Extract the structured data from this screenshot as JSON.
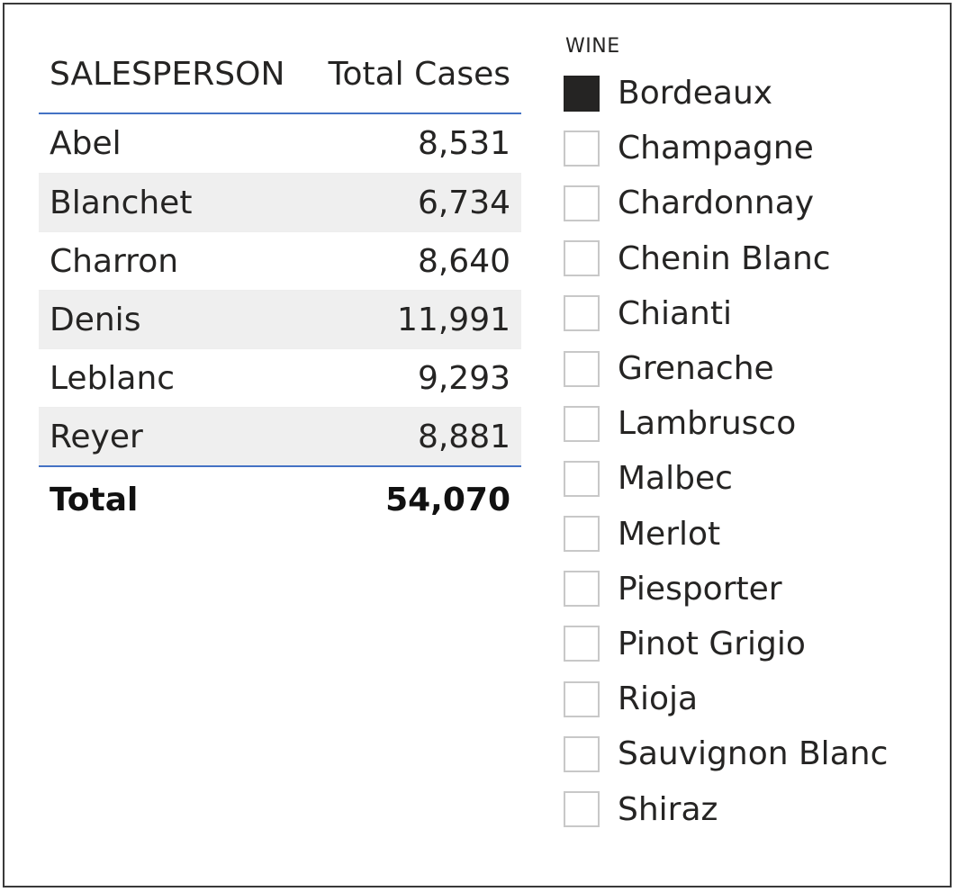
{
  "table": {
    "columns": [
      "SALESPERSON",
      "Total Cases"
    ],
    "rows": [
      {
        "name": "Abel",
        "cases": "8,531"
      },
      {
        "name": "Blanchet",
        "cases": "6,734"
      },
      {
        "name": "Charron",
        "cases": "8,640"
      },
      {
        "name": "Denis",
        "cases": "11,991"
      },
      {
        "name": "Leblanc",
        "cases": "9,293"
      },
      {
        "name": "Reyer",
        "cases": "8,881"
      }
    ],
    "total": {
      "label": "Total",
      "value": "54,070"
    }
  },
  "slicer": {
    "title": "WINE",
    "items": [
      {
        "label": "Bordeaux",
        "checked": true
      },
      {
        "label": "Champagne",
        "checked": false
      },
      {
        "label": "Chardonnay",
        "checked": false
      },
      {
        "label": "Chenin Blanc",
        "checked": false
      },
      {
        "label": "Chianti",
        "checked": false
      },
      {
        "label": "Grenache",
        "checked": false
      },
      {
        "label": "Lambrusco",
        "checked": false
      },
      {
        "label": "Malbec",
        "checked": false
      },
      {
        "label": "Merlot",
        "checked": false
      },
      {
        "label": "Piesporter",
        "checked": false
      },
      {
        "label": "Pinot Grigio",
        "checked": false
      },
      {
        "label": "Rioja",
        "checked": false
      },
      {
        "label": "Sauvignon Blanc",
        "checked": false
      },
      {
        "label": "Shiraz",
        "checked": false
      }
    ]
  },
  "colors": {
    "accent_line": "#4472c4",
    "checked_fill": "#252423",
    "alt_row": "#efefef"
  }
}
